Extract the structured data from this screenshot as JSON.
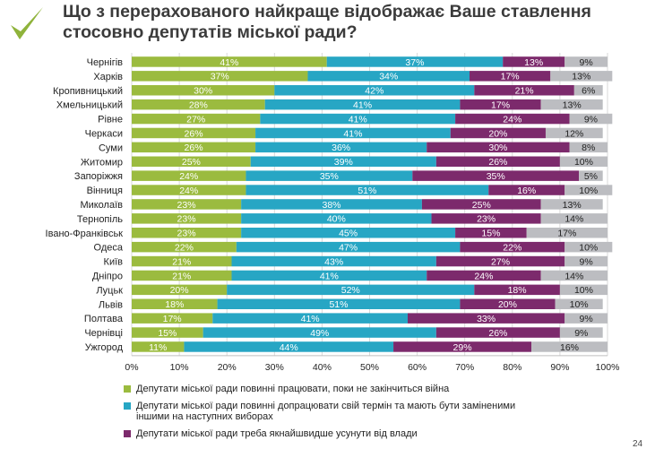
{
  "title_line1": "Що з перерахованого найкраще відображає Ваше ставлення",
  "title_line2": "стосовно депутатів міської ради?",
  "page_number": "24",
  "colors": {
    "green": "#9bbb3f",
    "blue": "#27a6c4",
    "purple": "#7c2a6c",
    "gray": "#bcbdc1",
    "logo": "#8fb33b"
  },
  "chart_data": {
    "type": "bar",
    "orientation": "horizontal",
    "stacked": true,
    "categories": [
      "Чернігів",
      "Харків",
      "Кропивницький",
      "Хмельницький",
      "Рівне",
      "Черкаси",
      "Суми",
      "Житомир",
      "Запоріжжя",
      "Вінниця",
      "Миколаїв",
      "Тернопіль",
      "Івано-Франківськ",
      "Одеса",
      "Київ",
      "Дніпро",
      "Луцьк",
      "Львів",
      "Полтава",
      "Чернівці",
      "Ужгород"
    ],
    "series": [
      {
        "name": "Депутати міської ради повинні працювати, поки не закінчиться війна",
        "color": "#9bbb3f",
        "values": [
          41,
          37,
          30,
          28,
          27,
          26,
          26,
          25,
          24,
          24,
          23,
          23,
          23,
          22,
          21,
          21,
          20,
          18,
          17,
          15,
          11
        ]
      },
      {
        "name": "Депутати міської ради повинні допрацювати свій термін та мають бути заміненими іншими на наступних виборах",
        "color": "#27a6c4",
        "values": [
          37,
          34,
          42,
          41,
          41,
          41,
          36,
          39,
          35,
          51,
          38,
          40,
          45,
          47,
          43,
          41,
          52,
          51,
          41,
          49,
          44
        ]
      },
      {
        "name": "Депутати міської ради треба якнайшвидше усунути від влади",
        "color": "#7c2a6c",
        "values": [
          13,
          17,
          21,
          17,
          24,
          20,
          30,
          26,
          35,
          16,
          25,
          23,
          15,
          22,
          27,
          24,
          18,
          20,
          33,
          26,
          29
        ]
      },
      {
        "name": "",
        "color": "#bcbdc1",
        "values": [
          9,
          13,
          6,
          13,
          9,
          12,
          8,
          10,
          5,
          10,
          13,
          14,
          17,
          10,
          9,
          14,
          10,
          10,
          9,
          9,
          16
        ]
      }
    ],
    "x_ticks": [
      "0%",
      "10%",
      "20%",
      "30%",
      "40%",
      "50%",
      "60%",
      "70%",
      "80%",
      "90%",
      "100%"
    ],
    "xlim": [
      0,
      100
    ],
    "legend_position": "bottom",
    "legend_line2_part1": "Депутати міської ради повинні допрацювати свій термін та мають   бути заміненими",
    "legend_line2_part2": "іншими на наступних виборах"
  }
}
